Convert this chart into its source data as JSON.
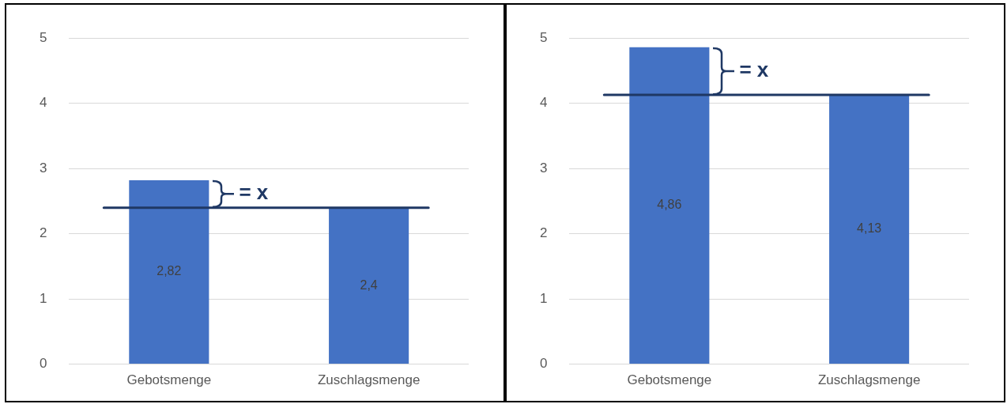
{
  "chart_data": [
    {
      "type": "bar",
      "categories": [
        "Gebotsmenge",
        "Zuschlagsmenge"
      ],
      "values": [
        2.82,
        2.4
      ],
      "value_labels": [
        "2,82",
        "2,4"
      ],
      "color": "#4472c4",
      "ylim": [
        0,
        5
      ],
      "yticks": [
        0,
        1,
        2,
        3,
        4,
        5
      ],
      "grid": "y",
      "legend": false,
      "ref_lines": [
        {
          "axis": "y",
          "value": 2.4,
          "color": "#1f3864"
        }
      ],
      "annotations": [
        "= x"
      ]
    },
    {
      "type": "bar",
      "categories": [
        "Gebotsmenge",
        "Zuschlagsmenge"
      ],
      "values": [
        4.86,
        4.13
      ],
      "value_labels": [
        "4,86",
        "4,13"
      ],
      "color": "#4472c4",
      "ylim": [
        0,
        5
      ],
      "yticks": [
        0,
        1,
        2,
        3,
        4,
        5
      ],
      "grid": "y",
      "legend": false,
      "ref_lines": [
        {
          "axis": "y",
          "value": 4.13,
          "color": "#1f3864"
        }
      ],
      "annotations": [
        "= x"
      ]
    }
  ]
}
